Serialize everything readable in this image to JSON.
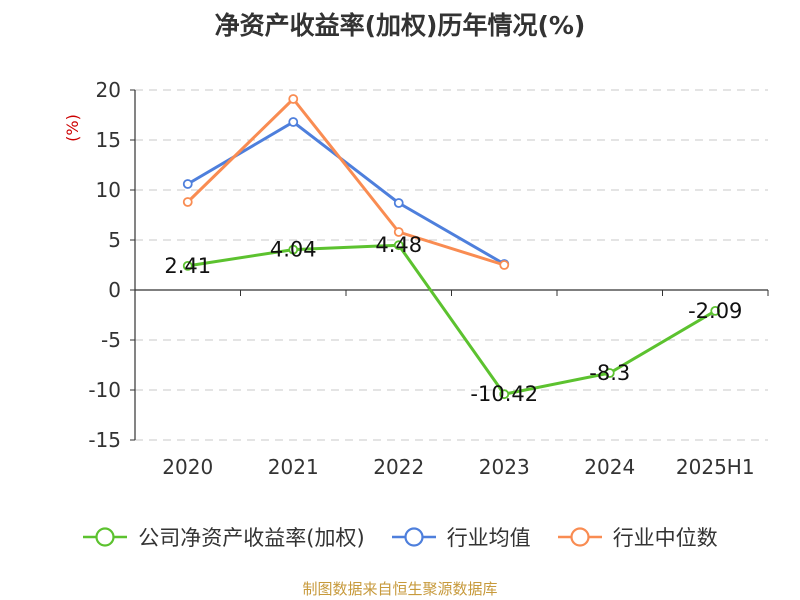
{
  "chart_data": {
    "type": "line",
    "title": "净资产收益率(加权)历年情况(%)",
    "ylabel": "(%)",
    "categories": [
      "2020",
      "2021",
      "2022",
      "2023",
      "2024",
      "2025H1"
    ],
    "ylim": [
      -15,
      20
    ],
    "yticks": [
      20,
      15,
      10,
      5,
      0,
      -5,
      -10,
      -15
    ],
    "grid": true,
    "legend_position": "bottom",
    "series": [
      {
        "name": "公司净资产收益率(加权)",
        "color": "#5cc22f",
        "values": [
          2.41,
          4.04,
          4.48,
          -10.42,
          -8.3,
          -2.09
        ],
        "data_labels": [
          "2.41",
          "4.04",
          "4.48",
          "-10.42",
          "-8.3",
          "-2.09"
        ]
      },
      {
        "name": "行业均值",
        "color": "#4e7fdc",
        "values": [
          10.6,
          16.8,
          8.7,
          2.6,
          null,
          null
        ]
      },
      {
        "name": "行业中位数",
        "color": "#f98c52",
        "values": [
          8.8,
          19.1,
          5.8,
          2.5,
          null,
          null
        ]
      }
    ]
  },
  "footer": {
    "source": "制图数据来自恒生聚源数据库"
  }
}
